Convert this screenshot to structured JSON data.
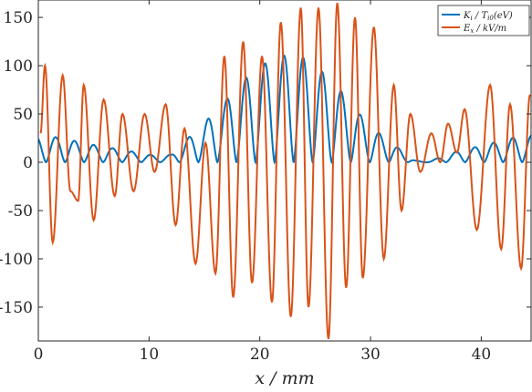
{
  "chart_data": {
    "type": "line",
    "xlabel": "x / mm",
    "ylabel": "",
    "xlim": [
      0,
      44.5
    ],
    "ylim": [
      -185,
      168
    ],
    "xticks": [
      "0",
      "10",
      "20",
      "30",
      "40"
    ],
    "xtick_values": [
      0,
      10,
      20,
      30,
      40
    ],
    "yticks": [
      "150",
      "100",
      "50",
      "0",
      "-50",
      "-100",
      "-150"
    ],
    "ytick_values": [
      150,
      100,
      50,
      0,
      -50,
      -100,
      -150
    ],
    "grid": false,
    "legend_position": "top-right",
    "series": [
      {
        "name": "K_i / T_i0(eV)",
        "color": "#0072BD",
        "envelope": [
          [
            0,
            26
          ],
          [
            2,
            26
          ],
          [
            4,
            20
          ],
          [
            6,
            16
          ],
          [
            8,
            12
          ],
          [
            10,
            8
          ],
          [
            11,
            6
          ],
          [
            12,
            8
          ],
          [
            13,
            20
          ],
          [
            14,
            30
          ],
          [
            15,
            40
          ],
          [
            16,
            55
          ],
          [
            17,
            65
          ],
          [
            18,
            80
          ],
          [
            19,
            90
          ],
          [
            20,
            100
          ],
          [
            21,
            105
          ],
          [
            22,
            110
          ],
          [
            23,
            112
          ],
          [
            24,
            108
          ],
          [
            25,
            100
          ],
          [
            26,
            90
          ],
          [
            27,
            78
          ],
          [
            28,
            65
          ],
          [
            29,
            50
          ],
          [
            30,
            38
          ],
          [
            31,
            28
          ],
          [
            32,
            20
          ],
          [
            33,
            10
          ],
          [
            34,
            2
          ],
          [
            35,
            0
          ],
          [
            36,
            4
          ],
          [
            37,
            8
          ],
          [
            38,
            12
          ],
          [
            39,
            14
          ],
          [
            40,
            18
          ],
          [
            41,
            20
          ],
          [
            42,
            22
          ],
          [
            43,
            26
          ],
          [
            44.5,
            28
          ]
        ]
      },
      {
        "name": "E_x / kV/m",
        "color": "#D95319",
        "extrema": [
          [
            0.2,
            30
          ],
          [
            0.6,
            100
          ],
          [
            1.3,
            -83
          ],
          [
            2.2,
            90
          ],
          [
            2.9,
            -30
          ],
          [
            3.6,
            -40
          ],
          [
            4.1,
            80
          ],
          [
            5.0,
            -60
          ],
          [
            5.9,
            65
          ],
          [
            6.9,
            -35
          ],
          [
            7.6,
            50
          ],
          [
            8.6,
            -30
          ],
          [
            9.6,
            50
          ],
          [
            10.5,
            -10
          ],
          [
            11.5,
            60
          ],
          [
            12.4,
            -65
          ],
          [
            13.2,
            35
          ],
          [
            14.2,
            -105
          ],
          [
            15.1,
            20
          ],
          [
            16.0,
            -115
          ],
          [
            16.8,
            110
          ],
          [
            17.6,
            -140
          ],
          [
            18.5,
            125
          ],
          [
            19.3,
            -125
          ],
          [
            20.2,
            110
          ],
          [
            21.1,
            -145
          ],
          [
            21.9,
            145
          ],
          [
            22.8,
            -160
          ],
          [
            23.7,
            160
          ],
          [
            24.4,
            -150
          ],
          [
            25.3,
            160
          ],
          [
            26.2,
            -183
          ],
          [
            27.0,
            165
          ],
          [
            27.8,
            -130
          ],
          [
            28.6,
            150
          ],
          [
            29.3,
            -120
          ],
          [
            30.3,
            140
          ],
          [
            31.2,
            -100
          ],
          [
            32.1,
            80
          ],
          [
            32.8,
            -50
          ],
          [
            33.6,
            50
          ],
          [
            34.5,
            -10
          ],
          [
            35.5,
            30
          ],
          [
            36.3,
            0
          ],
          [
            37.0,
            40
          ],
          [
            37.8,
            10
          ],
          [
            38.5,
            55
          ],
          [
            39.6,
            -70
          ],
          [
            40.8,
            80
          ],
          [
            41.8,
            -90
          ],
          [
            42.6,
            60
          ],
          [
            43.6,
            -110
          ],
          [
            44.4,
            70
          ]
        ]
      }
    ],
    "legend_labels": [
      {
        "main": "K",
        "sub": "i",
        "rest": " / T",
        "sub2": "i0",
        "tail": "(eV)"
      },
      {
        "main": "E",
        "sub": "x",
        "rest": " / kV/m",
        "sub2": "",
        "tail": ""
      }
    ]
  }
}
